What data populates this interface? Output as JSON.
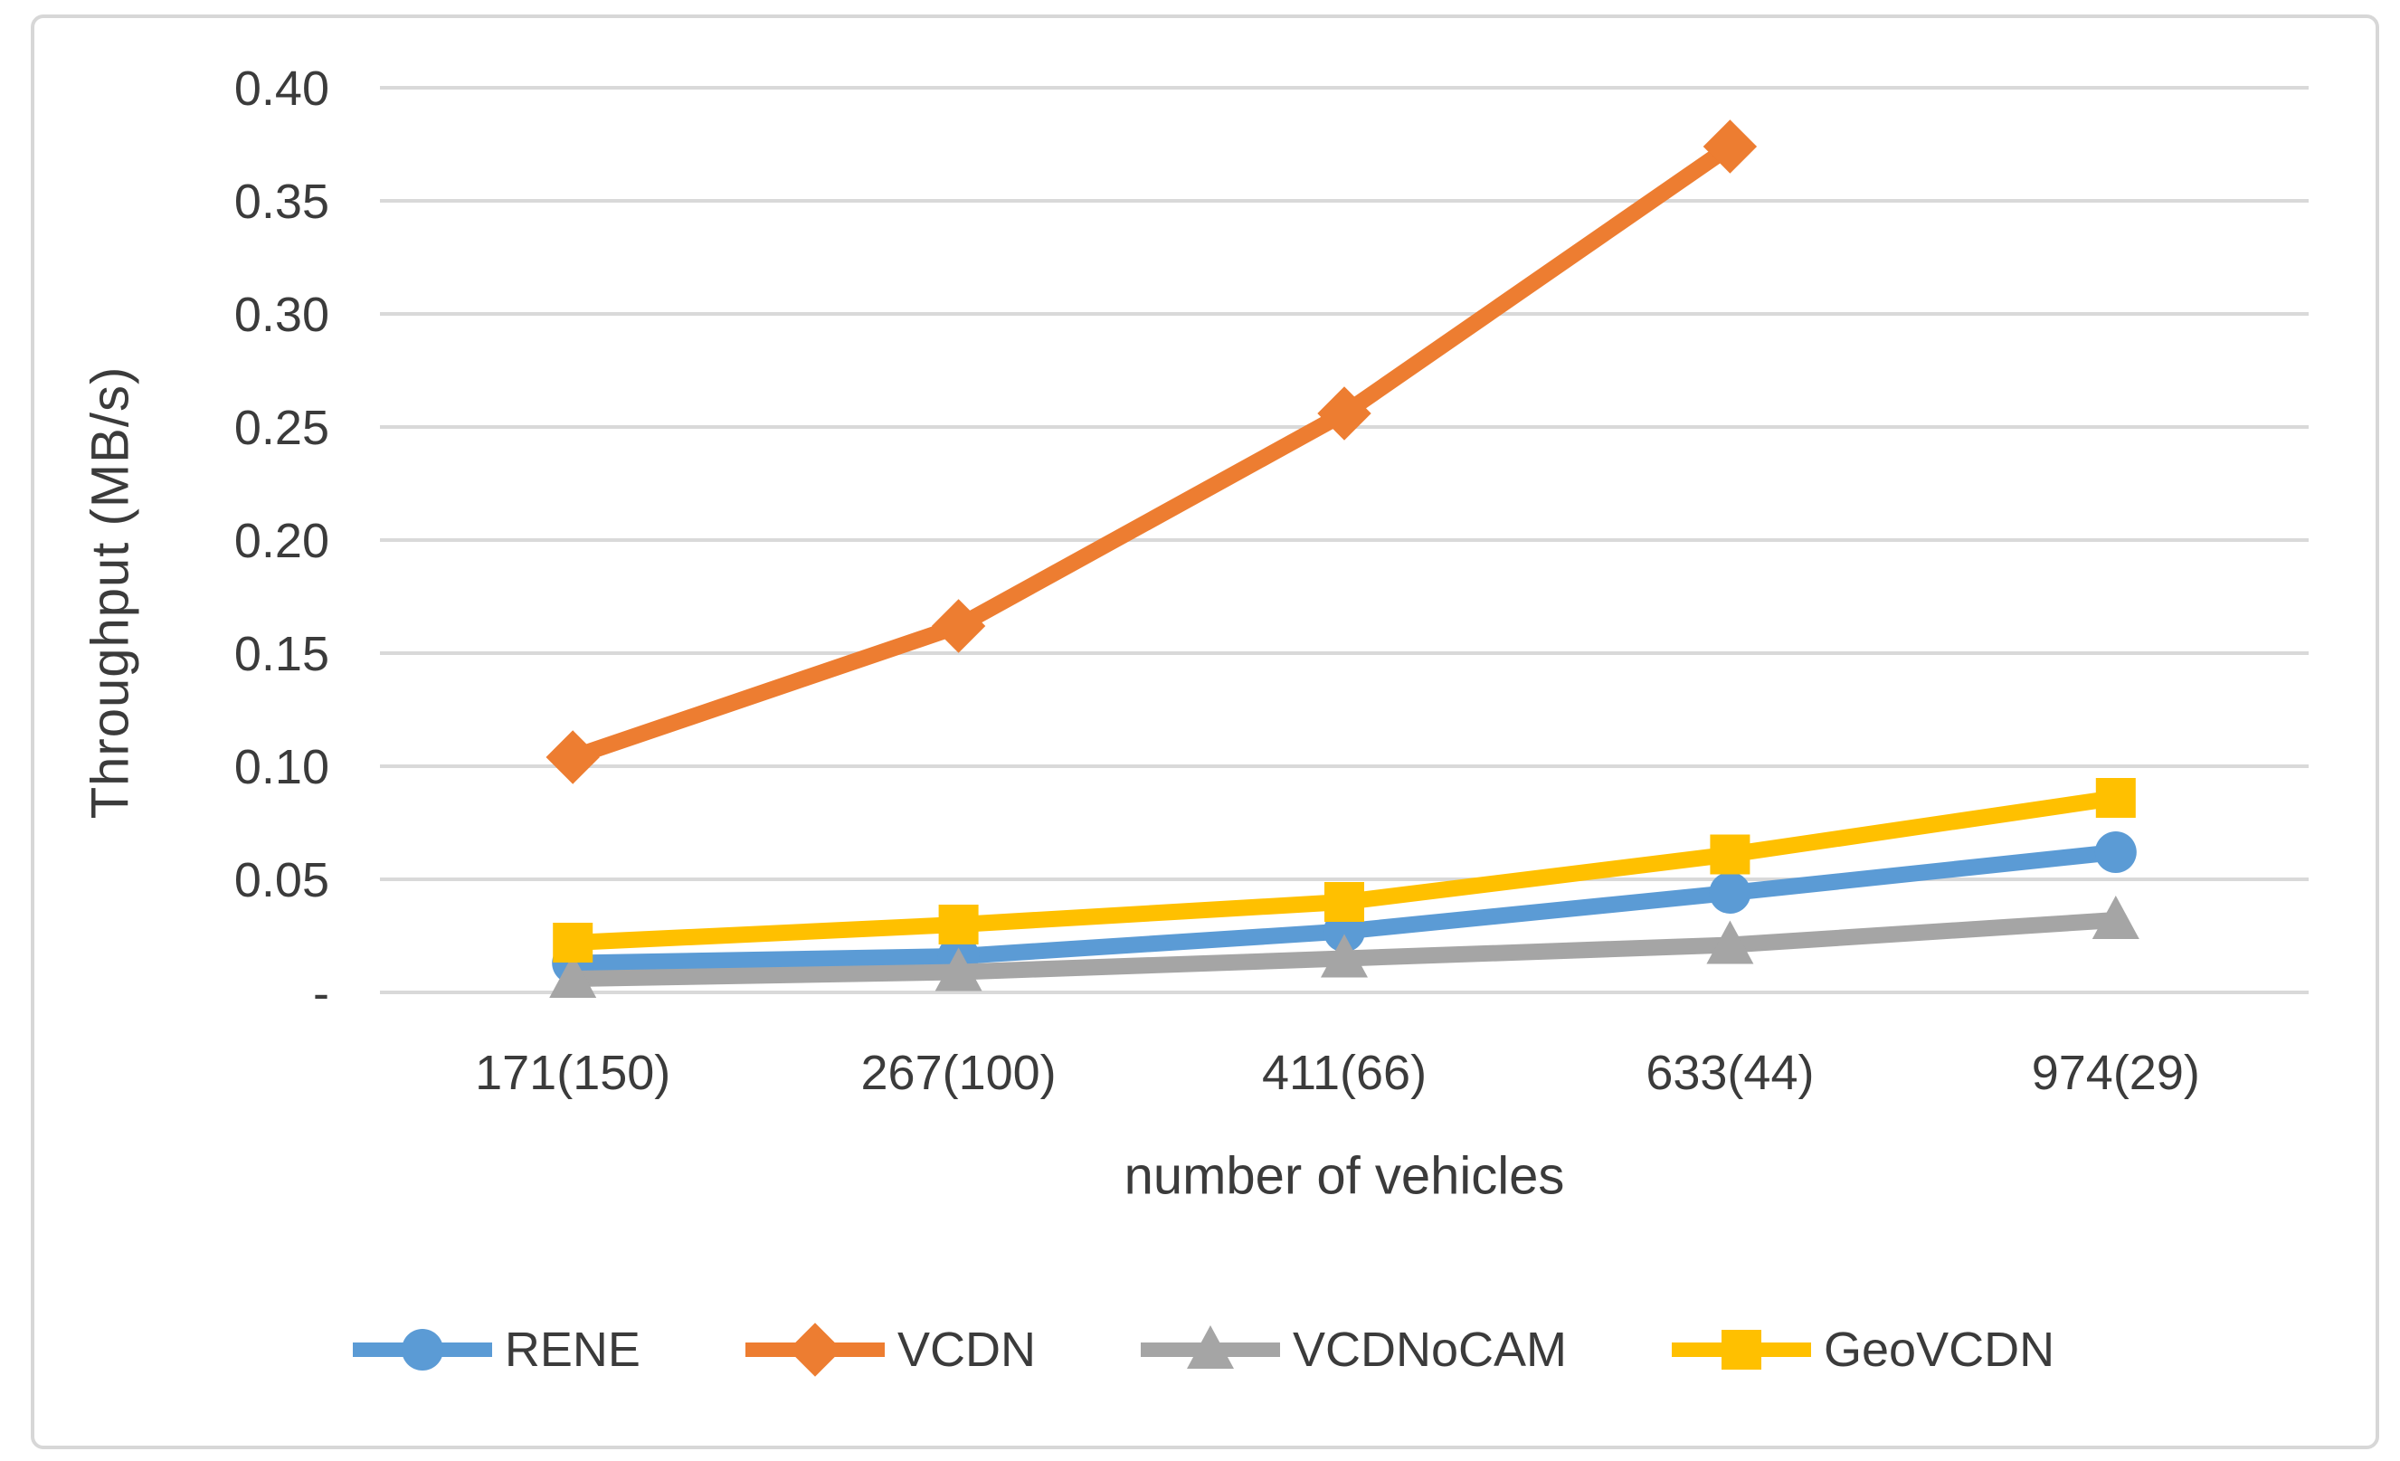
{
  "figure": {
    "background": "#ffffff",
    "border_color": "#d7d7d7",
    "text_color": "#3b3b3b"
  },
  "chart_data": {
    "type": "line",
    "title": "",
    "xlabel": "number of vehicles",
    "ylabel": "Throughput (MB/s)",
    "categories": [
      "171(150)",
      "267(100)",
      "411(66)",
      "633(44)",
      "974(29)"
    ],
    "y_ticks": [
      "0.40",
      "0.35",
      "0.30",
      "0.25",
      "0.20",
      "0.15",
      "0.10",
      "0.05",
      "-"
    ],
    "ylim": [
      0,
      0.4
    ],
    "y_step": 0.05,
    "grid": "horizontal",
    "gridline_color": "#d9d9d9",
    "legend_position": "bottom",
    "series": [
      {
        "name": "RENE",
        "color": "#5b9bd5",
        "marker": "circle",
        "values": [
          0.013,
          0.016,
          0.027,
          0.044,
          0.062
        ]
      },
      {
        "name": "VCDN",
        "color": "#ed7d31",
        "marker": "diamond",
        "values": [
          0.104,
          0.162,
          0.256,
          0.374,
          null
        ]
      },
      {
        "name": "VCDNoCAM",
        "color": "#a5a5a5",
        "marker": "triangle",
        "values": [
          0.006,
          0.009,
          0.015,
          0.021,
          0.032
        ]
      },
      {
        "name": "GeoVCDN",
        "color": "#ffc000",
        "marker": "square",
        "values": [
          0.022,
          0.03,
          0.04,
          0.061,
          0.086
        ]
      }
    ]
  }
}
